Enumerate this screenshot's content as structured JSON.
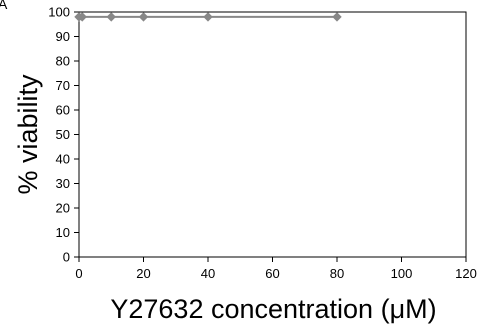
{
  "panel_label": "A",
  "chart_data": {
    "type": "line",
    "x": [
      0,
      1,
      10,
      20,
      40,
      80
    ],
    "series": [
      {
        "values": [
          98,
          98,
          98,
          98,
          98,
          98
        ]
      }
    ],
    "xlabel": "Y27632 concentration (μM)",
    "ylabel": "% viability",
    "xlim": [
      0,
      120
    ],
    "ylim": [
      0,
      100
    ],
    "x_ticks": [
      0,
      20,
      40,
      60,
      80,
      100,
      120
    ],
    "y_ticks": [
      0,
      10,
      20,
      30,
      40,
      50,
      60,
      70,
      80,
      90,
      100
    ],
    "grid": false,
    "legend": "none",
    "colors": {
      "series": "#888888",
      "axis": "#000000"
    }
  }
}
